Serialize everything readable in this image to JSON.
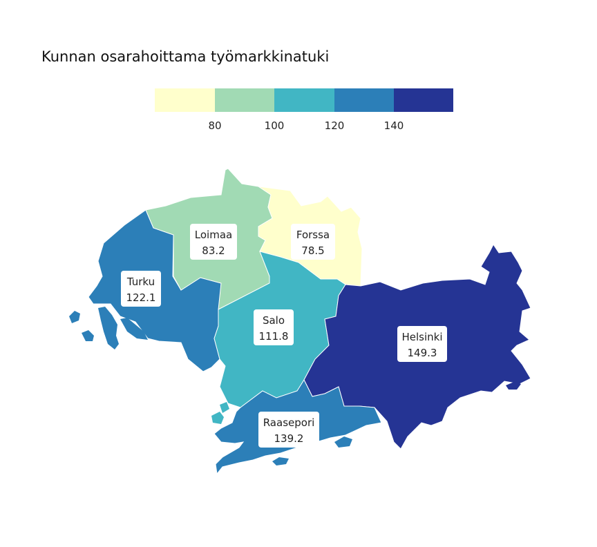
{
  "title": "Kunnan osarahoittama työmarkkinatuki",
  "legend": {
    "colors": [
      "#ffffcc",
      "#a1dab4",
      "#41b6c4",
      "#2c7fb8",
      "#253494"
    ],
    "ticks": [
      "80",
      "100",
      "120",
      "140"
    ]
  },
  "regions": [
    {
      "id": "turku",
      "name": "Turku",
      "value": "122.1",
      "color": "#2c7fb8"
    },
    {
      "id": "loimaa",
      "name": "Loimaa",
      "value": "83.2",
      "color": "#a1dab4"
    },
    {
      "id": "forssa",
      "name": "Forssa",
      "value": "78.5",
      "color": "#ffffcc"
    },
    {
      "id": "salo",
      "name": "Salo",
      "value": "111.8",
      "color": "#41b6c4"
    },
    {
      "id": "helsinki",
      "name": "Helsinki",
      "value": "149.3",
      "color": "#253494"
    },
    {
      "id": "raasepori",
      "name": "Raasepori",
      "value": "139.2",
      "color": "#2c7fb8"
    }
  ]
}
